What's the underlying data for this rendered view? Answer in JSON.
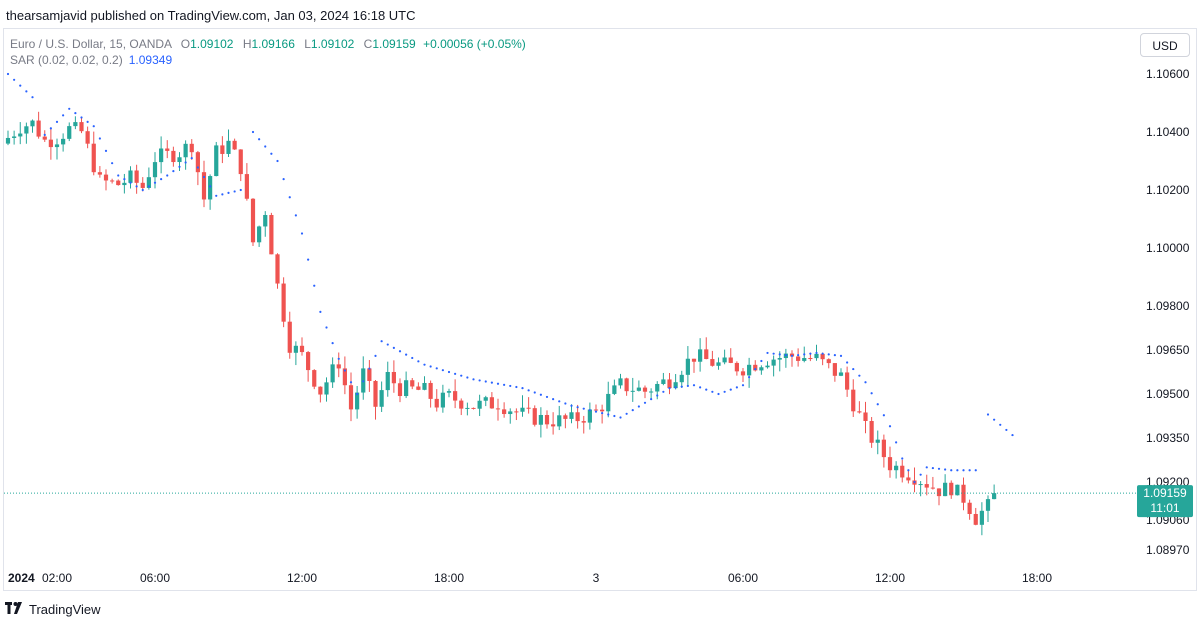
{
  "header": {
    "publisher_text": "thearsamjavid published on TradingView.com, Jan 03, 2024 16:18 UTC"
  },
  "legend": {
    "symbol": "Euro / U.S. Dollar, 15, OANDA",
    "open_label": "O",
    "open": "1.09102",
    "high_label": "H",
    "high": "1.09166",
    "low_label": "L",
    "low": "1.09102",
    "close_label": "C",
    "close": "1.09159",
    "change": "+0.00056 (+0.05%)",
    "sar_label": "SAR (0.02, 0.02, 0.2)",
    "sar_value": "1.09349"
  },
  "currency_button": "USD",
  "footer": {
    "logo_text": "TradingView"
  },
  "colors": {
    "up": "#26a69a",
    "down": "#ef5350",
    "sar": "#2962ff",
    "price_tag": "#26a69a"
  },
  "chart_data": {
    "type": "candlestick",
    "symbol": "EURUSD",
    "timeframe": "15",
    "y_axis_ticks": [
      "1.10600",
      "1.10400",
      "1.10200",
      "1.10000",
      "1.09800",
      "1.09650",
      "1.09500",
      "1.09350",
      "1.09200",
      "1.09060",
      "1.08970"
    ],
    "y_axis_values": [
      1.106,
      1.104,
      1.102,
      1.1,
      1.098,
      1.0965,
      1.095,
      1.0935,
      1.092,
      1.0906,
      1.0897
    ],
    "x_axis_ticks": [
      {
        "label": "2024",
        "bold": true,
        "time": 0
      },
      {
        "label": "02:00",
        "time": 2
      },
      {
        "label": "06:00",
        "time": 6
      },
      {
        "label": "12:00",
        "time": 12
      },
      {
        "label": "18:00",
        "time": 18
      },
      {
        "label": "3",
        "time": 24
      },
      {
        "label": "06:00",
        "time": 30
      },
      {
        "label": "12:00",
        "time": 36
      },
      {
        "label": "18:00",
        "time": 42
      }
    ],
    "last_price": "1.09159",
    "last_price_value": 1.09159,
    "countdown": "11:01",
    "anchor_closes": [
      [
        0,
        1.1038
      ],
      [
        0.5,
        1.1042
      ],
      [
        1,
        1.1043
      ],
      [
        1.5,
        1.1037
      ],
      [
        2,
        1.1038
      ],
      [
        2.5,
        1.1041
      ],
      [
        3,
        1.104
      ],
      [
        3.75,
        1.1023
      ],
      [
        4.5,
        1.1022
      ],
      [
        5,
        1.1024
      ],
      [
        5.5,
        1.1021
      ],
      [
        6,
        1.1031
      ],
      [
        7,
        1.1033
      ],
      [
        7.5,
        1.1036
      ],
      [
        8,
        1.1017
      ],
      [
        8.5,
        1.1033
      ],
      [
        9,
        1.1036
      ],
      [
        9.5,
        1.1028
      ],
      [
        10,
        1.1002
      ],
      [
        10.5,
        1.1013
      ],
      [
        11,
        1.0987
      ],
      [
        11.5,
        1.0967
      ],
      [
        12,
        1.0963
      ],
      [
        12.75,
        1.0951
      ],
      [
        13.5,
        1.0961
      ],
      [
        14,
        1.0945
      ],
      [
        14.5,
        1.0957
      ],
      [
        15,
        1.0946
      ],
      [
        15.5,
        1.0956
      ],
      [
        16,
        1.0952
      ],
      [
        17,
        1.0951
      ],
      [
        17.5,
        1.0947
      ],
      [
        18,
        1.0949
      ],
      [
        19,
        1.0946
      ],
      [
        20,
        1.0947
      ],
      [
        21,
        1.0943
      ],
      [
        22,
        1.0941
      ],
      [
        23,
        1.0941
      ],
      [
        24,
        1.0944
      ],
      [
        25,
        1.0953
      ],
      [
        26,
        1.0951
      ],
      [
        27,
        1.0955
      ],
      [
        28,
        1.0963
      ],
      [
        29,
        1.096
      ],
      [
        30,
        1.0959
      ],
      [
        31,
        1.0962
      ],
      [
        32,
        1.0963
      ],
      [
        33,
        1.0962
      ],
      [
        34,
        1.0956
      ],
      [
        35,
        1.0938
      ],
      [
        36,
        1.0926
      ],
      [
        37,
        1.0922
      ],
      [
        38,
        1.0917
      ],
      [
        38.5,
        1.0918
      ],
      [
        39,
        1.0914
      ],
      [
        39.5,
        1.0907
      ],
      [
        40,
        1.0911
      ],
      [
        40.25,
        1.09159
      ]
    ],
    "sar_points": [
      [
        0,
        1.106
      ],
      [
        1,
        1.1052
      ],
      [
        1.5,
        1.1039
      ],
      [
        2.5,
        1.1048
      ],
      [
        3.5,
        1.1042
      ],
      [
        4.5,
        1.1025
      ],
      [
        5.5,
        1.102
      ],
      [
        6.5,
        1.1025
      ],
      [
        7.5,
        1.1031
      ],
      [
        8.5,
        1.1018
      ],
      [
        9.5,
        1.102
      ],
      [
        10,
        1.104
      ],
      [
        11,
        1.103
      ],
      [
        12,
        1.1005
      ],
      [
        12.75,
        1.0978
      ],
      [
        13.5,
        1.0962
      ],
      [
        14.25,
        1.095
      ],
      [
        15,
        1.0963
      ],
      [
        15.25,
        1.0968
      ],
      [
        17,
        1.096
      ],
      [
        19,
        1.0955
      ],
      [
        21,
        1.0952
      ],
      [
        23,
        1.0946
      ],
      [
        24,
        1.0944
      ],
      [
        25,
        1.0942
      ],
      [
        26,
        1.0947
      ],
      [
        27,
        1.0952
      ],
      [
        28,
        1.0953
      ],
      [
        29,
        1.095
      ],
      [
        30,
        1.0953
      ],
      [
        31,
        1.0964
      ],
      [
        32,
        1.0963
      ],
      [
        33,
        1.0964
      ],
      [
        34,
        1.0963
      ],
      [
        35,
        1.0954
      ],
      [
        36,
        1.0939
      ],
      [
        36.5,
        1.0928
      ],
      [
        37,
        1.092
      ],
      [
        37.5,
        1.0925
      ],
      [
        38.5,
        1.0924
      ],
      [
        39.5,
        1.0924
      ],
      [
        40,
        1.0943
      ],
      [
        41,
        1.0936
      ]
    ]
  }
}
